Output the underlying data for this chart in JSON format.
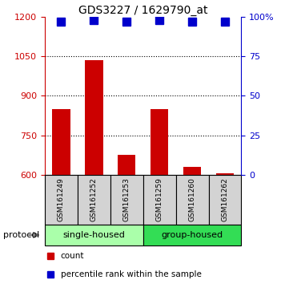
{
  "title": "GDS3227 / 1629790_at",
  "samples": [
    "GSM161249",
    "GSM161252",
    "GSM161253",
    "GSM161259",
    "GSM161260",
    "GSM161262"
  ],
  "bar_values": [
    849,
    1035,
    675,
    849,
    630,
    606
  ],
  "bar_baseline": 600,
  "bar_color": "#cc0000",
  "percentile_values": [
    97,
    98,
    97,
    98,
    97,
    97
  ],
  "percentile_color": "#0000cc",
  "ylim_left": [
    600,
    1200
  ],
  "ylim_right": [
    0,
    100
  ],
  "yticks_left": [
    600,
    750,
    900,
    1050,
    1200
  ],
  "yticks_right": [
    0,
    25,
    50,
    75,
    100
  ],
  "ytick_labels_right": [
    "0",
    "25",
    "50",
    "75",
    "100%"
  ],
  "dotted_lines": [
    750,
    900,
    1050
  ],
  "protocols": [
    {
      "label": "single-housed",
      "indices": [
        0,
        1,
        2
      ],
      "color": "#aaffaa"
    },
    {
      "label": "group-housed",
      "indices": [
        3,
        4,
        5
      ],
      "color": "#33dd55"
    }
  ],
  "protocol_label": "protocol",
  "legend_items": [
    {
      "label": "count",
      "color": "#cc0000"
    },
    {
      "label": "percentile rank within the sample",
      "color": "#0000cc"
    }
  ],
  "left_axis_color": "#cc0000",
  "right_axis_color": "#0000cc",
  "background_color": "#ffffff",
  "sample_box_color": "#d3d3d3",
  "bar_width": 0.55,
  "percentile_marker_size": 7,
  "figsize": [
    3.61,
    3.54
  ],
  "dpi": 100
}
